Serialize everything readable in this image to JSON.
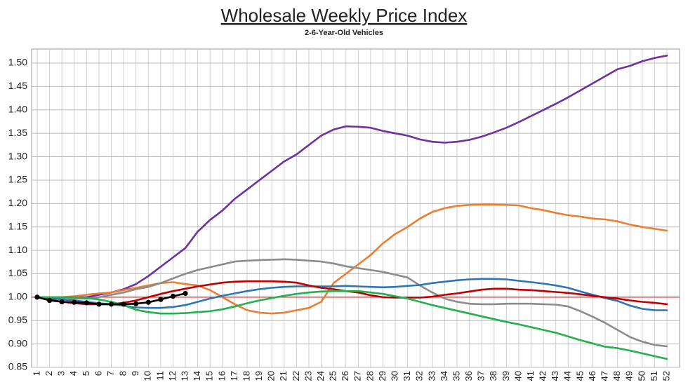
{
  "chart_data": {
    "type": "line",
    "title": "Wholesale Weekly Price Index",
    "subtitle": "2-6-Year-Old Vehicles",
    "categories": [
      "1",
      "2",
      "3",
      "4",
      "5",
      "6",
      "7",
      "8",
      "9",
      "10",
      "11",
      "12",
      "13",
      "14",
      "15",
      "16",
      "17",
      "18",
      "19",
      "20",
      "21",
      "22",
      "23",
      "24",
      "25",
      "26",
      "27",
      "28",
      "29",
      "30",
      "31",
      "32",
      "33",
      "34",
      "35",
      "36",
      "37",
      "38",
      "39",
      "40",
      "41",
      "42",
      "43",
      "44",
      "45",
      "46",
      "47",
      "48",
      "49",
      "50",
      "51",
      "52"
    ],
    "ylim": [
      0.85,
      1.53
    ],
    "yticks": [
      0.85,
      {
        "value": 0.9,
        "label": "0.90"
      },
      0.95,
      {
        "value": 1,
        "label": "1.00"
      },
      1.05,
      {
        "value": 1.1,
        "label": "1.10"
      },
      1.15,
      {
        "value": 1.2,
        "label": "1.20"
      },
      1.25,
      {
        "value": 1.3,
        "label": "1.30"
      },
      1.35,
      {
        "value": 1.4,
        "label": "1.40"
      },
      1.45,
      {
        "value": 1.5,
        "label": "1.50"
      }
    ],
    "grid": true,
    "reference_line": {
      "value": 1,
      "color": "#e03030"
    },
    "series": [
      {
        "color": "#7030a0",
        "values": [
          1.0,
          1.0,
          1.0,
          1.0,
          1.0,
          1.005,
          1.01,
          1.017,
          1.028,
          1.045,
          1.065,
          1.085,
          1.105,
          1.14,
          1.165,
          1.185,
          1.21,
          1.23,
          1.25,
          1.27,
          1.29,
          1.305,
          1.325,
          1.345,
          1.358,
          1.365,
          1.364,
          1.362,
          1.355,
          1.35,
          1.345,
          1.337,
          1.332,
          1.33,
          1.332,
          1.336,
          1.343,
          1.352,
          1.362,
          1.374,
          1.387,
          1.4,
          1.413,
          1.427,
          1.442,
          1.457,
          1.472,
          1.487,
          1.494,
          1.504,
          1.511,
          1.516
        ]
      },
      {
        "color": "#ed7d31",
        "values": [
          1.0,
          1.0,
          1.0,
          1.002,
          1.005,
          1.008,
          1.01,
          1.015,
          1.02,
          1.025,
          1.03,
          1.032,
          1.028,
          1.025,
          1.015,
          1.0,
          0.985,
          0.972,
          0.967,
          0.965,
          0.967,
          0.972,
          0.977,
          0.99,
          1.03,
          1.05,
          1.07,
          1.09,
          1.115,
          1.135,
          1.15,
          1.168,
          1.182,
          1.19,
          1.195,
          1.197,
          1.198,
          1.198,
          1.197,
          1.196,
          1.19,
          1.186,
          1.18,
          1.175,
          1.172,
          1.168,
          1.166,
          1.162,
          1.155,
          1.15,
          1.146,
          1.142
        ]
      },
      {
        "color": "#8c8c8c",
        "values": [
          1.0,
          1.0,
          0.998,
          0.997,
          0.997,
          1.0,
          1.005,
          1.01,
          1.017,
          1.022,
          1.03,
          1.04,
          1.05,
          1.058,
          1.064,
          1.07,
          1.076,
          1.078,
          1.079,
          1.08,
          1.081,
          1.08,
          1.078,
          1.076,
          1.072,
          1.066,
          1.062,
          1.058,
          1.054,
          1.048,
          1.042,
          1.025,
          1.01,
          0.997,
          0.99,
          0.986,
          0.985,
          0.985,
          0.986,
          0.986,
          0.986,
          0.985,
          0.984,
          0.98,
          0.97,
          0.958,
          0.945,
          0.93,
          0.915,
          0.905,
          0.898,
          0.895
        ]
      },
      {
        "color": "#2e75b6",
        "values": [
          1.0,
          0.998,
          0.995,
          0.993,
          0.99,
          0.987,
          0.985,
          0.982,
          0.978,
          0.977,
          0.977,
          0.979,
          0.983,
          0.99,
          0.997,
          1.003,
          1.008,
          1.013,
          1.017,
          1.02,
          1.022,
          1.023,
          1.023,
          1.023,
          1.023,
          1.024,
          1.023,
          1.022,
          1.021,
          1.022,
          1.024,
          1.026,
          1.03,
          1.033,
          1.036,
          1.038,
          1.039,
          1.039,
          1.038,
          1.035,
          1.032,
          1.029,
          1.025,
          1.02,
          1.012,
          1.005,
          0.998,
          0.992,
          0.982,
          0.975,
          0.972,
          0.972
        ]
      },
      {
        "color": "#c00000",
        "values": [
          1.0,
          0.995,
          0.99,
          0.987,
          0.985,
          0.985,
          0.985,
          0.988,
          0.993,
          1.0,
          1.007,
          1.013,
          1.018,
          1.023,
          1.027,
          1.031,
          1.033,
          1.034,
          1.034,
          1.034,
          1.033,
          1.031,
          1.025,
          1.02,
          1.017,
          1.013,
          1.01,
          1.004,
          1.0,
          0.999,
          0.999,
          0.999,
          1.001,
          1.005,
          1.008,
          1.012,
          1.016,
          1.018,
          1.018,
          1.016,
          1.015,
          1.013,
          1.011,
          1.009,
          1.006,
          1.003,
          1.0,
          0.997,
          0.993,
          0.99,
          0.988,
          0.985
        ]
      },
      {
        "color": "#22b14c",
        "values": [
          1.0,
          1.0,
          1.0,
          1.0,
          0.998,
          0.995,
          0.99,
          0.983,
          0.973,
          0.968,
          0.965,
          0.965,
          0.966,
          0.968,
          0.97,
          0.974,
          0.98,
          0.987,
          0.993,
          0.998,
          1.003,
          1.007,
          1.01,
          1.012,
          1.013,
          1.013,
          1.013,
          1.01,
          1.007,
          1.002,
          0.997,
          0.99,
          0.983,
          0.977,
          0.971,
          0.965,
          0.959,
          0.953,
          0.947,
          0.942,
          0.936,
          0.93,
          0.924,
          0.916,
          0.908,
          0.901,
          0.894,
          0.891,
          0.886,
          0.88,
          0.874,
          0.868
        ]
      },
      {
        "color": "#000000",
        "markers": true,
        "values": [
          1.0,
          0.993,
          0.99,
          0.989,
          0.988,
          0.985,
          0.985,
          0.985,
          0.986,
          0.989,
          0.995,
          1.002,
          1.008,
          null,
          null,
          null,
          null,
          null,
          null,
          null,
          null,
          null,
          null,
          null,
          null,
          null,
          null,
          null,
          null,
          null,
          null,
          null,
          null,
          null,
          null,
          null,
          null,
          null,
          null,
          null,
          null,
          null,
          null,
          null,
          null,
          null,
          null,
          null,
          null,
          null,
          null,
          null
        ]
      }
    ]
  }
}
